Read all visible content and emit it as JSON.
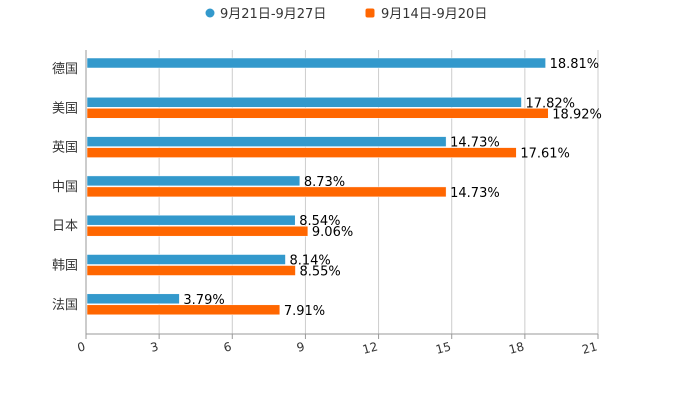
{
  "chart_data": {
    "type": "bar",
    "orientation": "horizontal",
    "categories": [
      "德国",
      "美国",
      "英国",
      "中国",
      "日本",
      "韩国",
      "法国"
    ],
    "series": [
      {
        "name": "9月21日-9月27日",
        "color": "#3399cc",
        "values": [
          18.81,
          17.82,
          14.73,
          8.73,
          8.54,
          8.14,
          3.79
        ],
        "labels": [
          "18.81%",
          "17.82%",
          "14.73%",
          "8.73%",
          "8.54%",
          "8.14%",
          "3.79%"
        ]
      },
      {
        "name": "9月14日-9月20日",
        "color": "#ff6600",
        "values": [
          null,
          18.92,
          17.61,
          14.73,
          9.06,
          8.55,
          7.91
        ],
        "labels": [
          "",
          "18.92%",
          "17.61%",
          "14.73%",
          "9.06%",
          "8.55%",
          "7.91%"
        ]
      }
    ],
    "xlim": [
      0,
      21
    ],
    "xticks": [
      "0",
      "3",
      "6",
      "9",
      "12",
      "15",
      "18",
      "21"
    ],
    "grid": true,
    "legend": "top-center"
  }
}
